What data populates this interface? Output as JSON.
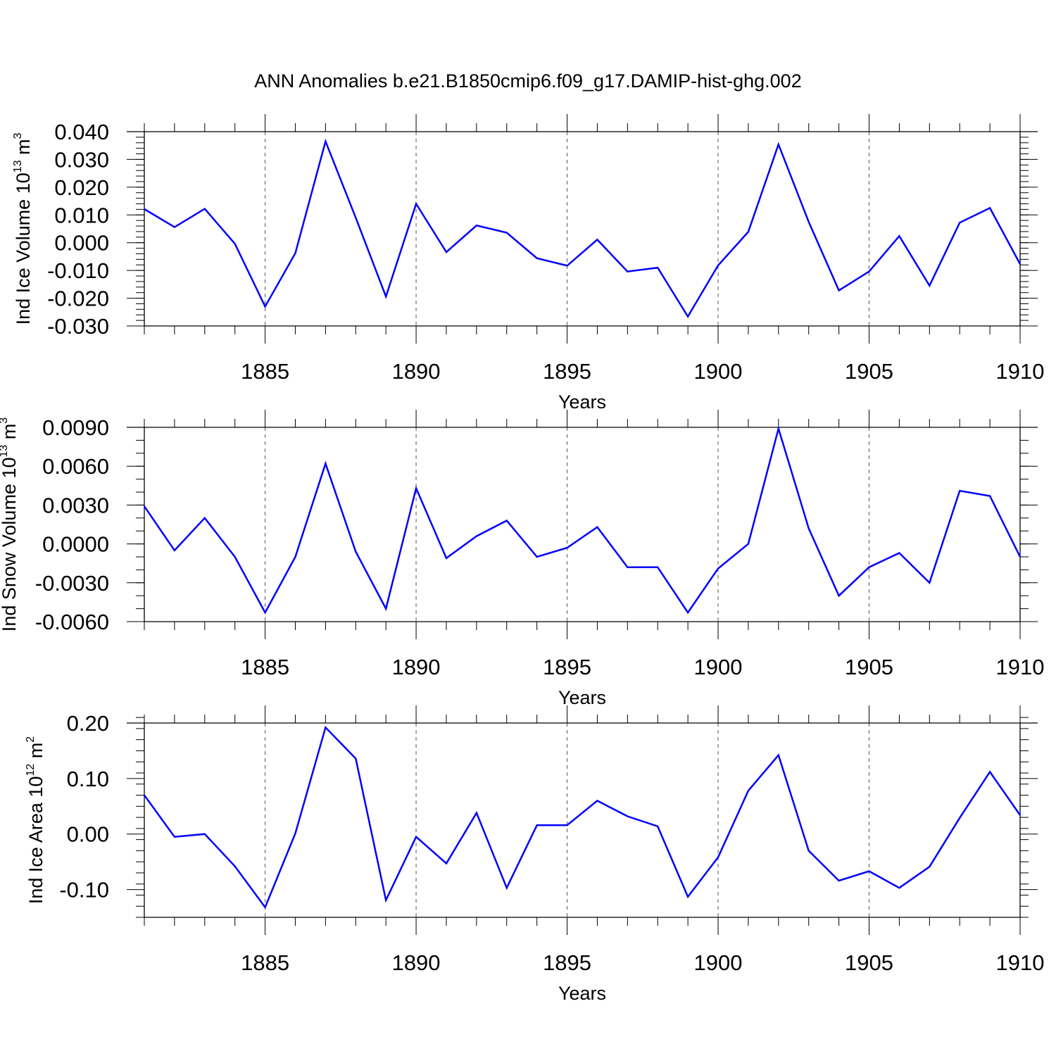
{
  "title": "ANN Anomalies b.e21.B1850cmip6.f09_g17.DAMIP-hist-ghg.002",
  "colors": {
    "line": "#0000ff",
    "frame": "#000000",
    "grid": "#555555"
  },
  "chart_data": [
    {
      "type": "line",
      "ylabel": {
        "text": "Ind Ice Volume 10",
        "exp": "13",
        "unit": " m",
        "unit_exp": "3"
      },
      "xlabel": "Years",
      "xlim": [
        1881,
        1910
      ],
      "ylim": [
        -0.03,
        0.04
      ],
      "xticks": [
        1885,
        1890,
        1895,
        1900,
        1905,
        1910
      ],
      "yticks": [
        -0.03,
        -0.02,
        -0.01,
        0.0,
        0.01,
        0.02,
        0.03,
        0.04
      ],
      "ytick_labels": [
        "-0.030",
        "-0.020",
        "-0.010",
        "0.000",
        "0.010",
        "0.020",
        "0.030",
        "0.040"
      ],
      "ylim_minor": 0.002,
      "grid": "vertical-dashed",
      "series": [
        {
          "x": [
            1881,
            1882,
            1883,
            1884,
            1885,
            1886,
            1887,
            1888,
            1889,
            1890,
            1891,
            1892,
            1893,
            1894,
            1895,
            1896,
            1897,
            1898,
            1899,
            1900,
            1901,
            1902,
            1903,
            1904,
            1905,
            1906,
            1907,
            1908,
            1909,
            1910
          ],
          "values": [
            0.0121,
            0.0056,
            0.0122,
            -0.0004,
            -0.023,
            -0.0038,
            0.0365,
            0.009,
            -0.0194,
            0.014,
            -0.0034,
            0.0062,
            0.0036,
            -0.0056,
            -0.0083,
            0.0011,
            -0.0104,
            -0.009,
            -0.0266,
            -0.0082,
            0.0039,
            0.0354,
            0.0075,
            -0.0172,
            -0.0104,
            0.0024,
            -0.0155,
            0.0072,
            0.0125,
            -0.0077
          ]
        }
      ]
    },
    {
      "type": "line",
      "ylabel": {
        "text": "Ind Snow Volume 10",
        "exp": "13",
        "unit": " m",
        "unit_exp": "3"
      },
      "xlabel": "Years",
      "xlim": [
        1881,
        1910
      ],
      "ylim": [
        -0.006,
        0.009
      ],
      "xticks": [
        1885,
        1890,
        1895,
        1900,
        1905,
        1910
      ],
      "yticks": [
        -0.006,
        -0.003,
        0.0,
        0.003,
        0.006,
        0.009
      ],
      "ytick_labels": [
        "-0.0060",
        "-0.0030",
        "0.0000",
        "0.0030",
        "0.0060",
        "0.0090"
      ],
      "ylim_minor": 0.001,
      "grid": "vertical-dashed",
      "series": [
        {
          "x": [
            1881,
            1882,
            1883,
            1884,
            1885,
            1886,
            1887,
            1888,
            1889,
            1890,
            1891,
            1892,
            1893,
            1894,
            1895,
            1896,
            1897,
            1898,
            1899,
            1900,
            1901,
            1902,
            1903,
            1904,
            1905,
            1906,
            1907,
            1908,
            1909,
            1910
          ],
          "values": [
            0.0029,
            -0.0005,
            0.002,
            -0.001,
            -0.0053,
            -0.001,
            0.0062,
            -0.0006,
            -0.005,
            0.0043,
            -0.0011,
            0.0006,
            0.0018,
            -0.001,
            -0.0003,
            0.0013,
            -0.0018,
            -0.0018,
            -0.0053,
            -0.0019,
            0.0,
            0.0089,
            0.0012,
            -0.004,
            -0.0018,
            -0.0007,
            -0.003,
            0.0041,
            0.0037,
            -0.001
          ]
        }
      ]
    },
    {
      "type": "line",
      "ylabel": {
        "text": "Ind Ice Area 10",
        "exp": "12",
        "unit": " m",
        "unit_exp": "2"
      },
      "xlabel": "Years",
      "xlim": [
        1881,
        1910
      ],
      "ylim": [
        -0.15,
        0.2
      ],
      "xticks": [
        1885,
        1890,
        1895,
        1900,
        1905,
        1910
      ],
      "yticks": [
        -0.1,
        0.0,
        0.1,
        0.2
      ],
      "ytick_labels": [
        "-0.10",
        "0.00",
        "0.10",
        "0.20"
      ],
      "ylim_minor": 0.02,
      "grid": "vertical-dashed",
      "series": [
        {
          "x": [
            1881,
            1882,
            1883,
            1884,
            1885,
            1886,
            1887,
            1888,
            1889,
            1890,
            1891,
            1892,
            1893,
            1894,
            1895,
            1896,
            1897,
            1898,
            1899,
            1900,
            1901,
            1902,
            1903,
            1904,
            1905,
            1906,
            1907,
            1908,
            1909,
            1910
          ],
          "values": [
            0.07,
            -0.005,
            0.0,
            -0.058,
            -0.132,
            0.001,
            0.192,
            0.136,
            -0.119,
            -0.005,
            -0.053,
            0.038,
            -0.097,
            0.016,
            0.016,
            0.06,
            0.032,
            0.014,
            -0.113,
            -0.042,
            0.078,
            0.142,
            -0.03,
            -0.084,
            -0.067,
            -0.097,
            -0.059,
            0.029,
            0.112,
            0.034
          ]
        }
      ]
    }
  ]
}
